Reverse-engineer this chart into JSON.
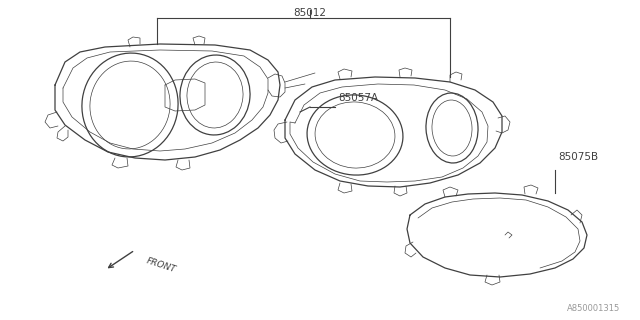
{
  "bg_color": "#ffffff",
  "line_color": "#404040",
  "text_color": "#404040",
  "part_85012_label": "85012",
  "part_85057A_label": "85057A",
  "part_85075B_label": "85075B",
  "front_label": "FRONT",
  "ref_code": "A850001315",
  "figsize": [
    6.4,
    3.2
  ],
  "dpi": 100
}
